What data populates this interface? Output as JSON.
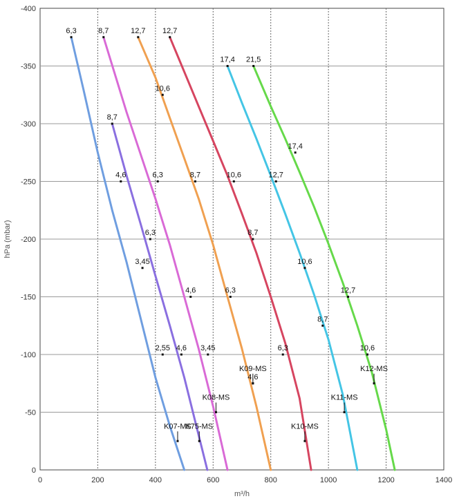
{
  "chart_data": {
    "type": "line",
    "xlabel": "m³/h",
    "ylabel": "hPa (mbar)",
    "xlim": [
      0,
      1400
    ],
    "ylim": [
      0,
      -400
    ],
    "x_ticks": [
      "0",
      "200",
      "400",
      "600",
      "800",
      "1000",
      "1200",
      "1400"
    ],
    "y_ticks": [
      "0",
      "-50",
      "-100",
      "-150",
      "-200",
      "-250",
      "-300",
      "-350",
      "-400"
    ],
    "grid": true,
    "series": [
      {
        "name": "K07-MS",
        "color": "#6f9ee0",
        "x": [
          108,
          150,
          200,
          250,
          300,
          350,
          400,
          450,
          500
        ],
        "y": [
          -375,
          -330,
          -275,
          -225,
          -180,
          -130,
          -80,
          -38,
          0
        ],
        "points": [
          {
            "x": 108,
            "y": -375,
            "label": "6,3"
          },
          {
            "x": 280,
            "y": -250,
            "label": "4,6"
          },
          {
            "x": 355,
            "y": -175,
            "label": "3,45"
          },
          {
            "x": 425,
            "y": -100,
            "label": "2,55"
          },
          {
            "x": 477,
            "y": -25,
            "label": "K07-MS"
          }
        ]
      },
      {
        "name": "K75-MS",
        "color": "#8a6fe0",
        "x": [
          250,
          300,
          350,
          400,
          450,
          500,
          550,
          580
        ],
        "y": [
          -300,
          -255,
          -212,
          -168,
          -125,
          -80,
          -30,
          0
        ],
        "points": [
          {
            "x": 250,
            "y": -300,
            "label": "8,7"
          },
          {
            "x": 382,
            "y": -200,
            "label": "6,3"
          },
          {
            "x": 490,
            "y": -100,
            "label": "4,6"
          },
          {
            "x": 552,
            "y": -25,
            "label": "K75-MS"
          }
        ]
      },
      {
        "name": "K08-MS",
        "color": "#d96ad6",
        "x": [
          220,
          300,
          400,
          450,
          500,
          550,
          600,
          650
        ],
        "y": [
          -375,
          -310,
          -235,
          -195,
          -150,
          -105,
          -55,
          0
        ],
        "points": [
          {
            "x": 220,
            "y": -375,
            "label": "8,7"
          },
          {
            "x": 408,
            "y": -250,
            "label": "6,3"
          },
          {
            "x": 522,
            "y": -150,
            "label": "4,6"
          },
          {
            "x": 582,
            "y": -100,
            "label": "3,45"
          },
          {
            "x": 610,
            "y": -50,
            "label": "K08-MS"
          }
        ]
      },
      {
        "name": "K09-MS",
        "color": "#f0a050",
        "x": [
          340,
          400,
          450,
          500,
          550,
          600,
          650,
          700,
          750,
          800
        ],
        "y": [
          -375,
          -340,
          -305,
          -270,
          -235,
          -195,
          -150,
          -105,
          -55,
          0
        ],
        "points": [
          {
            "x": 340,
            "y": -375,
            "label": "12,7"
          },
          {
            "x": 425,
            "y": -325,
            "label": "10,6"
          },
          {
            "x": 538,
            "y": -250,
            "label": "8,7"
          },
          {
            "x": 660,
            "y": -150,
            "label": "6,3"
          },
          {
            "x": 738,
            "y": -75,
            "label": "4,6"
          },
          {
            "x": 738,
            "y": -75,
            "label": "K09-MS"
          }
        ]
      },
      {
        "name": "K10-MS",
        "color": "#d64560",
        "x": [
          450,
          500,
          550,
          600,
          650,
          700,
          750,
          800,
          850,
          900,
          940
        ],
        "y": [
          -375,
          -345,
          -315,
          -285,
          -255,
          -222,
          -188,
          -150,
          -110,
          -62,
          0
        ],
        "points": [
          {
            "x": 450,
            "y": -375,
            "label": "12,7"
          },
          {
            "x": 672,
            "y": -250,
            "label": "10,6"
          },
          {
            "x": 738,
            "y": -200,
            "label": "8,7"
          },
          {
            "x": 842,
            "y": -100,
            "label": "6,3"
          },
          {
            "x": 918,
            "y": -25,
            "label": "K10-MS"
          }
        ]
      },
      {
        "name": "K11-MS",
        "color": "#44c5e5",
        "x": [
          650,
          700,
          750,
          800,
          850,
          900,
          950,
          1000,
          1050,
          1100
        ],
        "y": [
          -350,
          -318,
          -287,
          -255,
          -222,
          -188,
          -152,
          -113,
          -65,
          0
        ],
        "points": [
          {
            "x": 650,
            "y": -350,
            "label": "17,4"
          },
          {
            "x": 818,
            "y": -250,
            "label": "12,7"
          },
          {
            "x": 918,
            "y": -175,
            "label": "10,6"
          },
          {
            "x": 980,
            "y": -125,
            "label": "8,7"
          },
          {
            "x": 1055,
            "y": -50,
            "label": "K11-MS"
          }
        ]
      },
      {
        "name": "K12-MS",
        "color": "#66d94a",
        "x": [
          740,
          800,
          850,
          900,
          950,
          1000,
          1050,
          1100,
          1150,
          1200,
          1230
        ],
        "y": [
          -350,
          -315,
          -287,
          -258,
          -228,
          -196,
          -162,
          -125,
          -85,
          -35,
          0
        ],
        "points": [
          {
            "x": 740,
            "y": -350,
            "label": "21,5"
          },
          {
            "x": 885,
            "y": -275,
            "label": "17,4"
          },
          {
            "x": 1068,
            "y": -150,
            "label": "12,7"
          },
          {
            "x": 1135,
            "y": -100,
            "label": "10,6"
          },
          {
            "x": 1158,
            "y": -75,
            "label": "K12-MS"
          }
        ]
      }
    ]
  }
}
